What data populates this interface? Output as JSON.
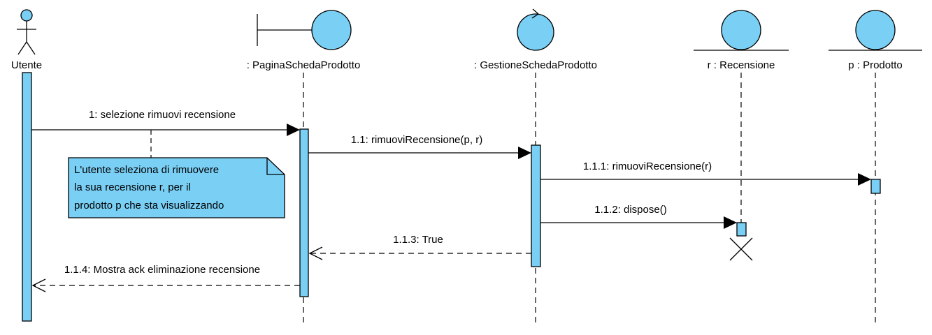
{
  "colors": {
    "fill": "#7ACFF5",
    "stroke": "#000000",
    "background": "#FFFFFF"
  },
  "lifelines": [
    {
      "label": "Utente",
      "kind": "actor"
    },
    {
      "label": ": PaginaSchedaProdotto",
      "kind": "boundary"
    },
    {
      "label": ": GestioneSchedaProdotto",
      "kind": "control"
    },
    {
      "label": "r : Recensione",
      "kind": "entity"
    },
    {
      "label": "p : Prodotto",
      "kind": "entity"
    }
  ],
  "messages": [
    {
      "label": "1: selezione rimuovi recensione",
      "type": "sync"
    },
    {
      "label": "1.1: rimuoviRecensione(p, r)",
      "type": "sync"
    },
    {
      "label": "1.1.1: rimuoviRecensione(r)",
      "type": "sync"
    },
    {
      "label": "1.1.2: dispose()",
      "type": "sync"
    },
    {
      "label": "1.1.3: True",
      "type": "return"
    },
    {
      "label": "1.1.4: Mostra ack eliminazione recensione",
      "type": "return"
    }
  ],
  "note": {
    "lines": [
      "L'utente seleziona di rimuovere",
      "la sua recensione r, per il",
      "prodotto p che sta visualizzando"
    ]
  }
}
